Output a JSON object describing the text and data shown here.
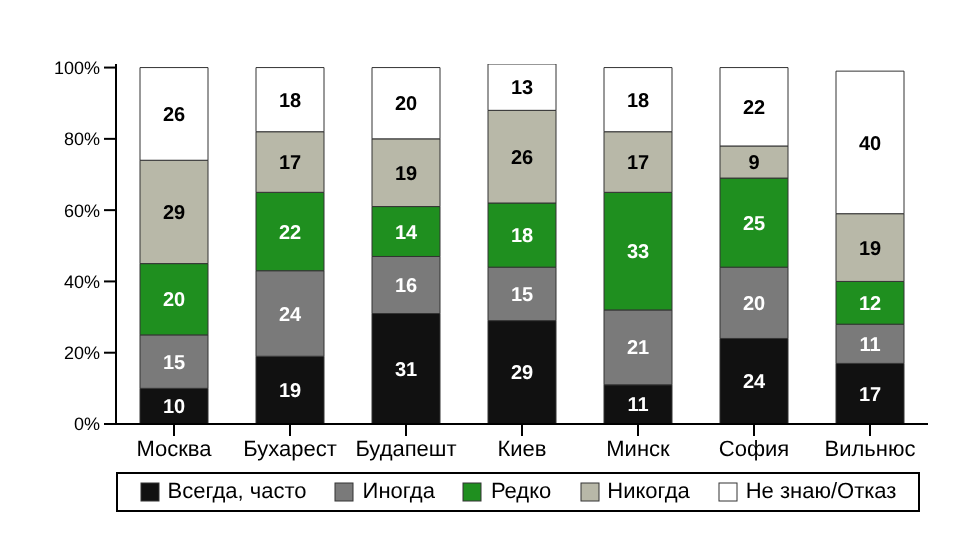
{
  "chart_data": {
    "type": "bar",
    "stacked": true,
    "categories": [
      "Москва",
      "Бухарест",
      "Будапешт",
      "Киев",
      "Минск",
      "София",
      "Вильнюс"
    ],
    "series": [
      {
        "name": "Всегда, часто",
        "color": "#111111",
        "values": [
          10,
          19,
          31,
          29,
          11,
          24,
          17
        ]
      },
      {
        "name": "Иногда",
        "color": "#7a7a7a",
        "values": [
          15,
          24,
          16,
          15,
          21,
          20,
          11
        ]
      },
      {
        "name": "Редко",
        "color": "#1f8f1f",
        "values": [
          20,
          22,
          14,
          18,
          33,
          25,
          12
        ]
      },
      {
        "name": "Никогда",
        "color": "#b8b8a8",
        "values": [
          29,
          17,
          19,
          26,
          17,
          9,
          19
        ]
      },
      {
        "name": "Не знаю/Отказ",
        "color": "#ffffff",
        "values": [
          26,
          18,
          20,
          13,
          18,
          22,
          40
        ]
      }
    ],
    "ylim": [
      0,
      101
    ],
    "yticks": [
      {
        "value": 0,
        "label": "0%"
      },
      {
        "value": 20,
        "label": "20%"
      },
      {
        "value": 40,
        "label": "40%"
      },
      {
        "value": 60,
        "label": "60%"
      },
      {
        "value": 80,
        "label": "80%"
      },
      {
        "value": 100,
        "label": "100%"
      }
    ],
    "data_labels": true,
    "legend": "bottom",
    "grid": false
  }
}
